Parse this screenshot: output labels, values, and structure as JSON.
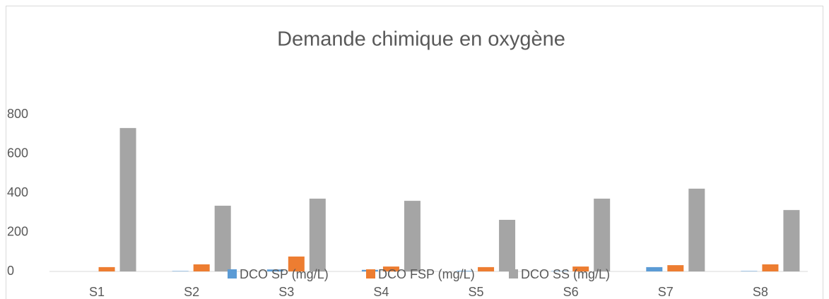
{
  "chart_data": {
    "type": "bar",
    "title": "Demande chimique en oxygène",
    "categories": [
      "S1",
      "S2",
      "S3",
      "S4",
      "S5",
      "S6",
      "S7",
      "S8"
    ],
    "series": [
      {
        "name": "DCO SP (mg/L)",
        "color": "#5b9bd5",
        "values": [
          0,
          2,
          10,
          8,
          3,
          2,
          22,
          2
        ]
      },
      {
        "name": "DCO FSP (mg/L)",
        "color": "#ed7d31",
        "values": [
          22,
          36,
          76,
          25,
          22,
          25,
          32,
          36
        ]
      },
      {
        "name": "DCO SS (mg/L)",
        "color": "#a5a5a5",
        "values": [
          731,
          335,
          371,
          360,
          263,
          371,
          422,
          313
        ]
      }
    ],
    "ylim": [
      0,
      800
    ],
    "yticks": [
      0,
      200,
      400,
      600,
      800
    ],
    "legend": "bottom"
  }
}
